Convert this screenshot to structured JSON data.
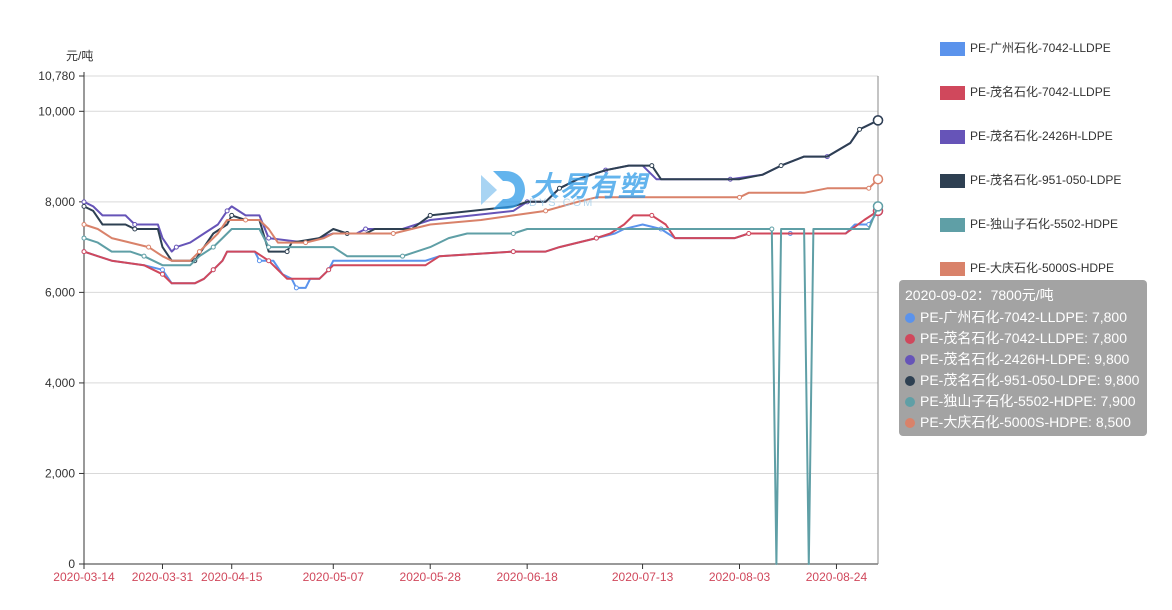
{
  "chart_data": {
    "type": "line",
    "unit_label": "元/吨",
    "y_ticks": [
      "0",
      "2,000",
      "4,000",
      "6,000",
      "8,000",
      "10,000",
      "10,780"
    ],
    "y_tick_values": [
      0,
      2000,
      4000,
      6000,
      8000,
      10000,
      10780
    ],
    "ylim": [
      0,
      10780
    ],
    "x_tick_labels": [
      "2020-03-14",
      "2020-03-31",
      "2020-04-15",
      "2020-05-07",
      "2020-05-28",
      "2020-06-18",
      "2020-07-13",
      "2020-08-03",
      "2020-08-24"
    ],
    "x_range": [
      "2020-03-14",
      "2020-09-02"
    ],
    "grid": "horizontal",
    "legend_position": "right",
    "series": [
      {
        "name": "PE-广州石化-7042-LLDPE",
        "color": "#5b93ec",
        "points": [
          [
            "2020-03-14",
            6900
          ],
          [
            "2020-03-17",
            6800
          ],
          [
            "2020-03-20",
            6700
          ],
          [
            "2020-03-27",
            6600
          ],
          [
            "2020-03-31",
            6500
          ],
          [
            "2020-04-02",
            6200
          ],
          [
            "2020-04-07",
            6200
          ],
          [
            "2020-04-09",
            6300
          ],
          [
            "2020-04-11",
            6500
          ],
          [
            "2020-04-13",
            6700
          ],
          [
            "2020-04-14",
            6900
          ],
          [
            "2020-04-20",
            6900
          ],
          [
            "2020-04-21",
            6700
          ],
          [
            "2020-04-24",
            6700
          ],
          [
            "2020-04-26",
            6400
          ],
          [
            "2020-04-28",
            6300
          ],
          [
            "2020-04-29",
            6100
          ],
          [
            "2020-05-01",
            6100
          ],
          [
            "2020-05-02",
            6300
          ],
          [
            "2020-05-04",
            6300
          ],
          [
            "2020-05-06",
            6500
          ],
          [
            "2020-05-07",
            6700
          ],
          [
            "2020-05-27",
            6700
          ],
          [
            "2020-05-30",
            6800
          ],
          [
            "2020-06-15",
            6900
          ],
          [
            "2020-06-22",
            6900
          ],
          [
            "2020-06-25",
            7000
          ],
          [
            "2020-06-29",
            7100
          ],
          [
            "2020-07-03",
            7200
          ],
          [
            "2020-07-07",
            7300
          ],
          [
            "2020-07-09",
            7400
          ],
          [
            "2020-07-13",
            7500
          ],
          [
            "2020-07-17",
            7400
          ],
          [
            "2020-07-20",
            7200
          ],
          [
            "2020-08-02",
            7200
          ],
          [
            "2020-08-05",
            7300
          ],
          [
            "2020-08-14",
            7300
          ],
          [
            "2020-08-17",
            7300
          ],
          [
            "2020-08-26",
            7300
          ],
          [
            "2020-08-28",
            7500
          ],
          [
            "2020-08-31",
            7500
          ],
          [
            "2020-09-02",
            7800
          ]
        ]
      },
      {
        "name": "PE-茂名石化-7042-LLDPE",
        "color": "#d0485c",
        "points": [
          [
            "2020-03-14",
            6900
          ],
          [
            "2020-03-17",
            6800
          ],
          [
            "2020-03-20",
            6700
          ],
          [
            "2020-03-27",
            6600
          ],
          [
            "2020-03-31",
            6400
          ],
          [
            "2020-04-02",
            6200
          ],
          [
            "2020-04-07",
            6200
          ],
          [
            "2020-04-09",
            6300
          ],
          [
            "2020-04-11",
            6500
          ],
          [
            "2020-04-13",
            6700
          ],
          [
            "2020-04-14",
            6900
          ],
          [
            "2020-04-20",
            6900
          ],
          [
            "2020-04-23",
            6700
          ],
          [
            "2020-04-25",
            6500
          ],
          [
            "2020-04-27",
            6300
          ],
          [
            "2020-05-04",
            6300
          ],
          [
            "2020-05-06",
            6500
          ],
          [
            "2020-05-07",
            6600
          ],
          [
            "2020-05-27",
            6600
          ],
          [
            "2020-05-30",
            6800
          ],
          [
            "2020-06-15",
            6900
          ],
          [
            "2020-06-22",
            6900
          ],
          [
            "2020-06-25",
            7000
          ],
          [
            "2020-06-29",
            7100
          ],
          [
            "2020-07-03",
            7200
          ],
          [
            "2020-07-06",
            7300
          ],
          [
            "2020-07-09",
            7500
          ],
          [
            "2020-07-11",
            7700
          ],
          [
            "2020-07-15",
            7700
          ],
          [
            "2020-07-18",
            7500
          ],
          [
            "2020-07-20",
            7200
          ],
          [
            "2020-08-02",
            7200
          ],
          [
            "2020-08-05",
            7300
          ],
          [
            "2020-08-26",
            7300
          ],
          [
            "2020-08-30",
            7600
          ],
          [
            "2020-09-02",
            7800
          ]
        ]
      },
      {
        "name": "PE-茂名石化-2426H-LDPE",
        "color": "#6654b8",
        "points": [
          [
            "2020-03-14",
            8000
          ],
          [
            "2020-03-16",
            7900
          ],
          [
            "2020-03-18",
            7700
          ],
          [
            "2020-03-23",
            7700
          ],
          [
            "2020-03-25",
            7500
          ],
          [
            "2020-03-30",
            7500
          ],
          [
            "2020-03-31",
            7200
          ],
          [
            "2020-04-02",
            6900
          ],
          [
            "2020-04-03",
            7000
          ],
          [
            "2020-04-06",
            7100
          ],
          [
            "2020-04-09",
            7300
          ],
          [
            "2020-04-12",
            7500
          ],
          [
            "2020-04-14",
            7800
          ],
          [
            "2020-04-15",
            7900
          ],
          [
            "2020-04-18",
            7700
          ],
          [
            "2020-04-21",
            7700
          ],
          [
            "2020-04-23",
            7200
          ],
          [
            "2020-05-01",
            7100
          ],
          [
            "2020-05-07",
            7300
          ],
          [
            "2020-05-12",
            7300
          ],
          [
            "2020-05-14",
            7400
          ],
          [
            "2020-05-22",
            7400
          ],
          [
            "2020-05-28",
            7600
          ],
          [
            "2020-06-15",
            7800
          ],
          [
            "2020-06-18",
            8000
          ],
          [
            "2020-06-22",
            8000
          ],
          [
            "2020-06-25",
            8300
          ],
          [
            "2020-06-29",
            8500
          ],
          [
            "2020-07-05",
            8700
          ],
          [
            "2020-07-10",
            8800
          ],
          [
            "2020-07-13",
            8800
          ],
          [
            "2020-07-16",
            8500
          ],
          [
            "2020-08-01",
            8500
          ],
          [
            "2020-08-08",
            8600
          ],
          [
            "2020-08-12",
            8800
          ],
          [
            "2020-08-17",
            9000
          ],
          [
            "2020-08-22",
            9000
          ],
          [
            "2020-08-27",
            9300
          ],
          [
            "2020-08-29",
            9600
          ],
          [
            "2020-09-02",
            9800
          ]
        ]
      },
      {
        "name": "PE-茂名石化-951-050-LDPE",
        "color": "#2e4052",
        "points": [
          [
            "2020-03-14",
            7900
          ],
          [
            "2020-03-16",
            7800
          ],
          [
            "2020-03-18",
            7500
          ],
          [
            "2020-03-23",
            7500
          ],
          [
            "2020-03-25",
            7400
          ],
          [
            "2020-03-30",
            7400
          ],
          [
            "2020-03-31",
            7000
          ],
          [
            "2020-04-02",
            6700
          ],
          [
            "2020-04-07",
            6700
          ],
          [
            "2020-04-09",
            7000
          ],
          [
            "2020-04-11",
            7300
          ],
          [
            "2020-04-14",
            7500
          ],
          [
            "2020-04-15",
            7700
          ],
          [
            "2020-04-18",
            7600
          ],
          [
            "2020-04-21",
            7600
          ],
          [
            "2020-04-23",
            6900
          ],
          [
            "2020-04-27",
            6900
          ],
          [
            "2020-04-28",
            7100
          ],
          [
            "2020-05-04",
            7200
          ],
          [
            "2020-05-07",
            7400
          ],
          [
            "2020-05-10",
            7300
          ],
          [
            "2020-05-14",
            7300
          ],
          [
            "2020-05-16",
            7400
          ],
          [
            "2020-05-24",
            7400
          ],
          [
            "2020-05-28",
            7700
          ],
          [
            "2020-06-15",
            7900
          ],
          [
            "2020-06-18",
            8000
          ],
          [
            "2020-06-22",
            8000
          ],
          [
            "2020-06-25",
            8300
          ],
          [
            "2020-06-29",
            8500
          ],
          [
            "2020-07-05",
            8700
          ],
          [
            "2020-07-10",
            8800
          ],
          [
            "2020-07-15",
            8800
          ],
          [
            "2020-07-17",
            8500
          ],
          [
            "2020-08-03",
            8500
          ],
          [
            "2020-08-08",
            8600
          ],
          [
            "2020-08-12",
            8800
          ],
          [
            "2020-08-17",
            9000
          ],
          [
            "2020-08-22",
            9000
          ],
          [
            "2020-08-27",
            9300
          ],
          [
            "2020-08-29",
            9600
          ],
          [
            "2020-09-02",
            9800
          ]
        ]
      },
      {
        "name": "PE-独山子石化-5502-HDPE",
        "color": "#5f9fa6",
        "points": [
          [
            "2020-03-14",
            7200
          ],
          [
            "2020-03-17",
            7100
          ],
          [
            "2020-03-20",
            6900
          ],
          [
            "2020-03-24",
            6900
          ],
          [
            "2020-03-27",
            6800
          ],
          [
            "2020-03-31",
            6600
          ],
          [
            "2020-04-06",
            6600
          ],
          [
            "2020-04-08",
            6800
          ],
          [
            "2020-04-11",
            7000
          ],
          [
            "2020-04-13",
            7200
          ],
          [
            "2020-04-15",
            7400
          ],
          [
            "2020-04-21",
            7400
          ],
          [
            "2020-04-23",
            7000
          ],
          [
            "2020-05-04",
            7000
          ],
          [
            "2020-05-07",
            7000
          ],
          [
            "2020-05-10",
            6800
          ],
          [
            "2020-05-22",
            6800
          ],
          [
            "2020-05-28",
            7000
          ],
          [
            "2020-06-01",
            7200
          ],
          [
            "2020-06-05",
            7300
          ],
          [
            "2020-06-15",
            7300
          ],
          [
            "2020-06-18",
            7400
          ],
          [
            "2020-07-13",
            7400
          ],
          [
            "2020-08-03",
            7400
          ],
          [
            "2020-08-10",
            7400
          ],
          [
            "2020-08-11",
            0
          ],
          [
            "2020-08-12",
            7400
          ],
          [
            "2020-08-17",
            7400
          ],
          [
            "2020-08-18",
            0
          ],
          [
            "2020-08-19",
            7400
          ],
          [
            "2020-08-31",
            7400
          ],
          [
            "2020-09-02",
            7900
          ]
        ]
      },
      {
        "name": "PE-大庆石化-5000S-HDPE",
        "color": "#d9826a",
        "points": [
          [
            "2020-03-14",
            7500
          ],
          [
            "2020-03-17",
            7400
          ],
          [
            "2020-03-20",
            7200
          ],
          [
            "2020-03-24",
            7100
          ],
          [
            "2020-03-28",
            7000
          ],
          [
            "2020-03-31",
            6800
          ],
          [
            "2020-04-02",
            6700
          ],
          [
            "2020-04-06",
            6700
          ],
          [
            "2020-04-08",
            6900
          ],
          [
            "2020-04-10",
            7100
          ],
          [
            "2020-04-12",
            7300
          ],
          [
            "2020-04-14",
            7600
          ],
          [
            "2020-04-18",
            7600
          ],
          [
            "2020-04-21",
            7600
          ],
          [
            "2020-04-23",
            7400
          ],
          [
            "2020-04-25",
            7100
          ],
          [
            "2020-05-01",
            7100
          ],
          [
            "2020-05-05",
            7200
          ],
          [
            "2020-05-07",
            7300
          ],
          [
            "2020-05-14",
            7300
          ],
          [
            "2020-05-20",
            7300
          ],
          [
            "2020-05-28",
            7500
          ],
          [
            "2020-06-08",
            7600
          ],
          [
            "2020-06-15",
            7700
          ],
          [
            "2020-06-22",
            7800
          ],
          [
            "2020-06-29",
            8000
          ],
          [
            "2020-07-03",
            8100
          ],
          [
            "2020-07-13",
            8100
          ],
          [
            "2020-08-03",
            8100
          ],
          [
            "2020-08-05",
            8200
          ],
          [
            "2020-08-17",
            8200
          ],
          [
            "2020-08-22",
            8300
          ],
          [
            "2020-08-31",
            8300
          ],
          [
            "2020-09-02",
            8500
          ]
        ]
      }
    ],
    "tooltip": {
      "title": "2020-09-02：7800元/吨",
      "rows": [
        {
          "text": "PE-广州石化-7042-LLDPE: 7,800",
          "color": "#5b93ec"
        },
        {
          "text": "PE-茂名石化-7042-LLDPE: 7,800",
          "color": "#d0485c"
        },
        {
          "text": "PE-茂名石化-2426H-LDPE: 9,800",
          "color": "#6654b8"
        },
        {
          "text": "PE-茂名石化-951-050-LDPE: 9,800",
          "color": "#2e4052"
        },
        {
          "text": "PE-独山子石化-5502-HDPE: 7,900",
          "color": "#5f9fa6"
        },
        {
          "text": "PE-大庆石化-5000S-HDPE: 8,500",
          "color": "#d9826a"
        }
      ]
    }
  },
  "watermark": {
    "brand": "大易有塑",
    "sub": "DYS.COM"
  }
}
